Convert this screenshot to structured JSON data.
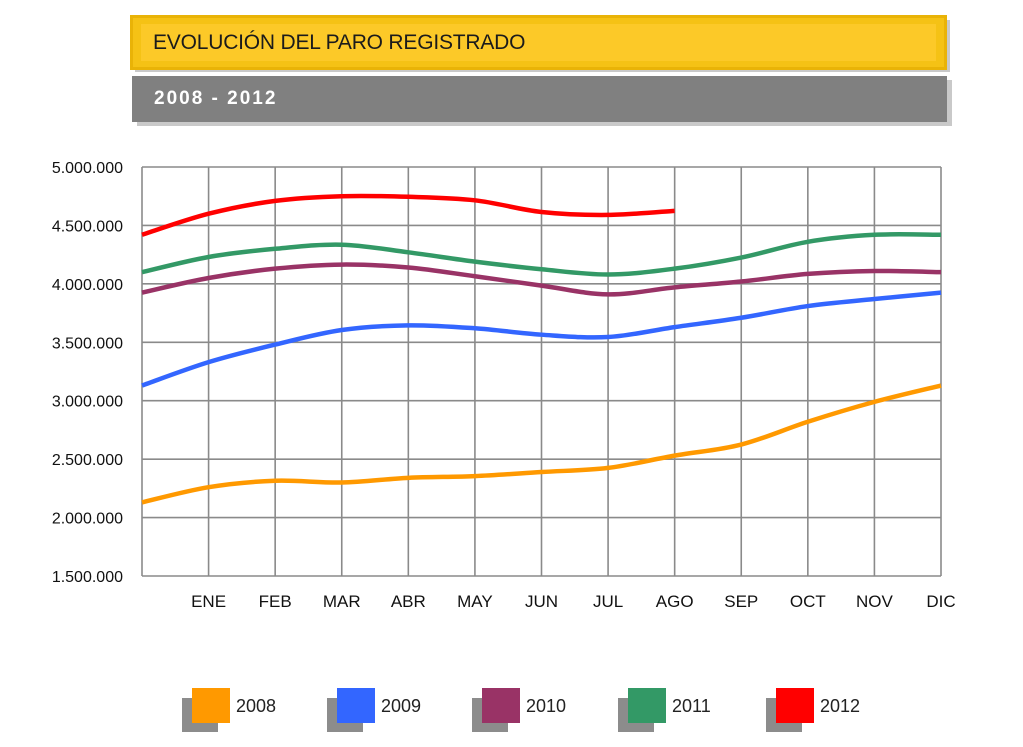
{
  "header": {
    "title": "EVOLUCIÓN DEL PARO REGISTRADO",
    "subtitle": "2008 - 2012"
  },
  "chart_data": {
    "type": "line",
    "categories": [
      "",
      "ENE",
      "FEB",
      "MAR",
      "ABR",
      "MAY",
      "JUN",
      "JUL",
      "AGO",
      "SEP",
      "OCT",
      "NOV",
      "DIC"
    ],
    "y_tick_labels": [
      "1.500.000",
      "2.000.000",
      "2.500.000",
      "3.000.000",
      "3.500.000",
      "4.000.000",
      "4.500.000",
      "5.000.000"
    ],
    "ylim": [
      1500000,
      5000000
    ],
    "grid": true,
    "legend_position": "bottom",
    "series": [
      {
        "name": "2008",
        "color": "#ff9900",
        "values": [
          2130000,
          2260000,
          2315000,
          2300000,
          2340000,
          2355000,
          2390000,
          2425000,
          2530000,
          2625000,
          2820000,
          2990000,
          3130000
        ]
      },
      {
        "name": "2009",
        "color": "#3366ff",
        "values": [
          3130000,
          3330000,
          3480000,
          3605000,
          3645000,
          3620000,
          3565000,
          3545000,
          3630000,
          3710000,
          3810000,
          3870000,
          3925000
        ]
      },
      {
        "name": "2010",
        "color": "#993366",
        "values": [
          3925000,
          4050000,
          4130000,
          4165000,
          4140000,
          4065000,
          3985000,
          3910000,
          3970000,
          4020000,
          4085000,
          4110000,
          4100000
        ]
      },
      {
        "name": "2011",
        "color": "#339966",
        "values": [
          4100000,
          4230000,
          4300000,
          4335000,
          4270000,
          4190000,
          4125000,
          4080000,
          4130000,
          4225000,
          4360000,
          4420000,
          4420000
        ]
      },
      {
        "name": "2012",
        "color": "#ff0000",
        "values": [
          4420000,
          4600000,
          4710000,
          4750000,
          4745000,
          4715000,
          4615000,
          4590000,
          4625000,
          null,
          null,
          null,
          null
        ]
      }
    ]
  }
}
